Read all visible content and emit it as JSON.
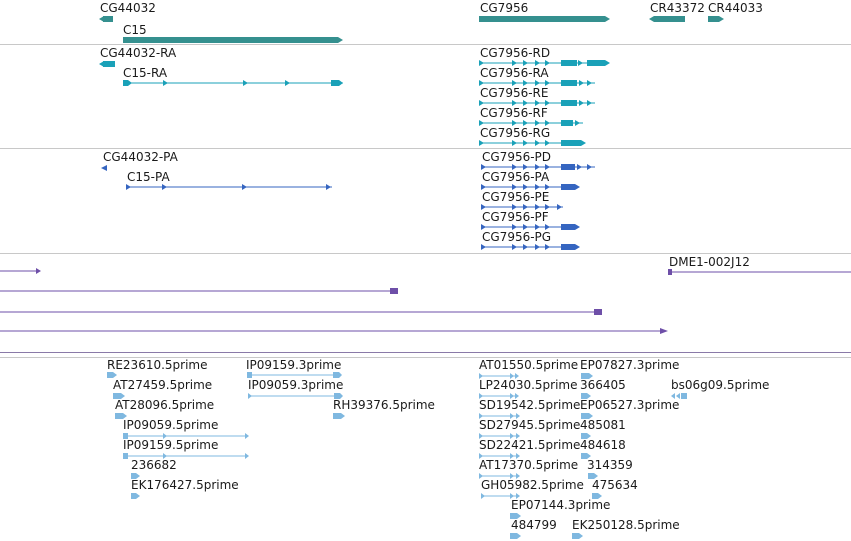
{
  "colors": {
    "gene": "#35908f",
    "transcript": "#1aa1b8",
    "protein": "#3565c0",
    "clone": "#6e4fa8",
    "est": "#7fb8e0"
  },
  "tracks": {
    "genes": {
      "labels": [
        "CG44032",
        "C15",
        "CG7956",
        "CR43372",
        "CR44033"
      ]
    },
    "transcripts": {
      "labels": [
        "CG44032-RA",
        "C15-RA",
        "CG7956-RD",
        "CG7956-RA",
        "CG7956-RE",
        "CG7956-RF",
        "CG7956-RG"
      ]
    },
    "proteins": {
      "labels": [
        "CG44032-PA",
        "C15-PA",
        "CG7956-PD",
        "CG7956-PA",
        "CG7956-PE",
        "CG7956-PF",
        "CG7956-PG"
      ]
    },
    "clones": {
      "labels": [
        "DME1-002J12"
      ]
    },
    "ests": {
      "labels": [
        "RE23610.5prime",
        "IP09159.3prime",
        "AT27459.5prime",
        "IP09059.3prime",
        "AT28096.5prime",
        "RH39376.5prime",
        "IP09059.5prime",
        "IP09159.5prime",
        "236682",
        "EK176427.5prime",
        "AT01550.5prime",
        "EP07827.3prime",
        "LP24030.5prime",
        "366405",
        "bs06g09.5prime",
        "SD19542.5prime",
        "EP06527.3prime",
        "SD27945.5prime",
        "485081",
        "SD22421.5prime",
        "484618",
        "AT17370.5prime",
        "314359",
        "GH05982.5prime",
        "475634",
        "EP07144.3prime",
        "484799",
        "EK250128.5prime"
      ]
    }
  }
}
